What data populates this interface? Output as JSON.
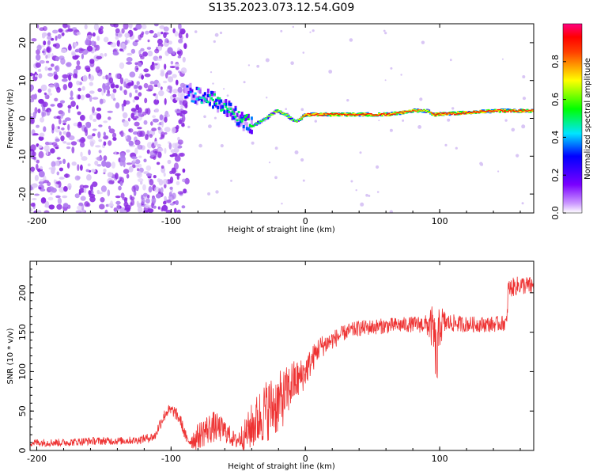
{
  "chart_data": [
    {
      "type": "heatmap",
      "title": "S135.2023.073.12.54.G09",
      "xlabel": "Height of straight line (km)",
      "ylabel": "Frequency (Hz)",
      "xlim": [
        -205,
        170
      ],
      "ylim": [
        -25,
        25
      ],
      "x_ticks": [
        -200,
        -100,
        0,
        100
      ],
      "y_ticks": [
        -20,
        -10,
        0,
        10,
        20
      ],
      "colorbar": {
        "label": "Normalized spectral amplitude",
        "range": [
          0,
          1
        ],
        "ticks": [
          0.0,
          0.2,
          0.4,
          0.6,
          0.8
        ]
      },
      "description_series": [
        {
          "name": "noise cloud",
          "x_range": [
            -205,
            -88
          ],
          "frequency_range": [
            -25,
            25
          ],
          "amplitude": 0.15
        },
        {
          "name": "ridge",
          "x": [
            -90,
            -80,
            -70,
            -60,
            -50,
            -40,
            -30,
            -22,
            -15,
            -8,
            0,
            20,
            40,
            60,
            80,
            90,
            95,
            120,
            140,
            160,
            170
          ],
          "frequency": [
            7,
            6,
            5,
            3,
            0,
            -2,
            0,
            2,
            1,
            -1,
            1,
            1,
            1,
            1,
            2,
            2,
            1,
            1.5,
            2,
            2,
            2
          ],
          "amplitude": [
            0.3,
            0.45,
            0.5,
            0.5,
            0.5,
            0.55,
            0.6,
            0.7,
            0.65,
            0.6,
            0.9,
            0.9,
            0.9,
            0.9,
            0.85,
            0.7,
            0.9,
            0.9,
            0.9,
            0.9,
            0.85
          ]
        }
      ]
    },
    {
      "type": "line",
      "title": "",
      "xlabel": "Height of straight line (km)",
      "ylabel": "SNR (10 * v/v)",
      "xlim": [
        -205,
        170
      ],
      "ylim": [
        0,
        240
      ],
      "x_ticks": [
        -200,
        -100,
        0,
        100
      ],
      "y_ticks": [
        0,
        50,
        100,
        150,
        200
      ],
      "series": [
        {
          "name": "SNR",
          "x": [
            -205,
            -180,
            -160,
            -140,
            -125,
            -112,
            -108,
            -103,
            -98,
            -93,
            -88,
            -82,
            -75,
            -68,
            -60,
            -52,
            -45,
            -40,
            -35,
            -30,
            -25,
            -20,
            -15,
            -10,
            -5,
            0,
            10,
            20,
            30,
            40,
            60,
            80,
            90,
            95,
            98,
            100,
            105,
            120,
            140,
            150,
            151,
            160,
            170
          ],
          "y": [
            10,
            10,
            12,
            12,
            13,
            18,
            35,
            50,
            50,
            38,
            12,
            15,
            25,
            30,
            25,
            12,
            20,
            30,
            40,
            50,
            55,
            60,
            70,
            85,
            90,
            100,
            130,
            140,
            150,
            155,
            158,
            160,
            160,
            155,
            110,
            160,
            162,
            160,
            160,
            162,
            205,
            210,
            208
          ],
          "noise_amplitude": [
            5,
            5,
            5,
            5,
            5,
            6,
            8,
            8,
            8,
            8,
            8,
            15,
            20,
            20,
            15,
            10,
            20,
            30,
            35,
            40,
            40,
            40,
            35,
            30,
            25,
            20,
            15,
            12,
            10,
            10,
            10,
            10,
            12,
            30,
            40,
            30,
            12,
            10,
            10,
            10,
            12,
            12,
            12
          ]
        }
      ]
    }
  ]
}
